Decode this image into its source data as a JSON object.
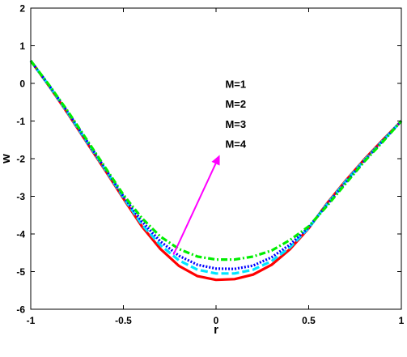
{
  "chart_data": {
    "type": "line",
    "xlabel": "r",
    "ylabel": "w",
    "xlim": [
      -1,
      1
    ],
    "ylim": [
      -6,
      2
    ],
    "xticks": [
      -1,
      -0.5,
      0,
      0.5,
      1
    ],
    "xtick_labels": [
      "-1",
      "-0.5",
      "0",
      "0.5",
      "1"
    ],
    "yticks": [
      2,
      1,
      0,
      -1,
      -2,
      -3,
      -4,
      -5,
      -6
    ],
    "ytick_labels": [
      "2",
      "1",
      "0",
      "-1",
      "-2",
      "-3",
      "-4",
      "-5",
      "-6"
    ],
    "grid": false,
    "x": [
      -1,
      -0.9,
      -0.8,
      -0.7,
      -0.6,
      -0.5,
      -0.4,
      -0.3,
      -0.2,
      -0.1,
      0,
      0.1,
      0.2,
      0.3,
      0.4,
      0.5,
      0.6,
      0.7,
      0.8,
      0.9,
      1
    ],
    "series": [
      {
        "name": "M=1",
        "color": "#ff0000",
        "style": "solid",
        "values": [
          0.6,
          -0.08,
          -0.8,
          -1.55,
          -2.3,
          -3.06,
          -3.8,
          -4.4,
          -4.85,
          -5.12,
          -5.22,
          -5.2,
          -5.08,
          -4.82,
          -4.4,
          -3.85,
          -3.18,
          -2.58,
          -2.02,
          -1.5,
          -1.0
        ]
      },
      {
        "name": "M=2",
        "color": "#00e5ff",
        "style": "dashed",
        "values": [
          0.6,
          -0.07,
          -0.78,
          -1.53,
          -2.27,
          -3.03,
          -3.75,
          -4.3,
          -4.7,
          -4.95,
          -5.05,
          -5.05,
          -4.95,
          -4.72,
          -4.35,
          -3.84,
          -3.2,
          -2.6,
          -2.04,
          -1.52,
          -1.0
        ]
      },
      {
        "name": "M=3",
        "color": "#0000ff",
        "style": "dotted",
        "values": [
          0.6,
          -0.06,
          -0.76,
          -1.51,
          -2.25,
          -3.0,
          -3.67,
          -4.2,
          -4.58,
          -4.82,
          -4.92,
          -4.93,
          -4.84,
          -4.62,
          -4.28,
          -3.82,
          -3.22,
          -2.63,
          -2.06,
          -1.53,
          -1.0
        ]
      },
      {
        "name": "M=4",
        "color": "#00ee00",
        "style": "dashdot",
        "values": [
          0.6,
          -0.05,
          -0.74,
          -1.48,
          -2.22,
          -2.96,
          -3.58,
          -4.07,
          -4.4,
          -4.6,
          -4.68,
          -4.68,
          -4.6,
          -4.44,
          -4.16,
          -3.8,
          -3.25,
          -2.66,
          -2.08,
          -1.55,
          -1.0
        ]
      }
    ],
    "annotations": [
      {
        "label": "M=1",
        "x": 0.05,
        "y": -0.12
      },
      {
        "label": "M=2",
        "x": 0.05,
        "y": -0.65
      },
      {
        "label": "M=3",
        "x": 0.05,
        "y": -1.18
      },
      {
        "label": "M=4",
        "x": 0.05,
        "y": -1.71
      }
    ],
    "arrow": {
      "color": "#ff00ff",
      "from": [
        -0.23,
        -4.55
      ],
      "to": [
        0.02,
        -1.9
      ]
    }
  }
}
